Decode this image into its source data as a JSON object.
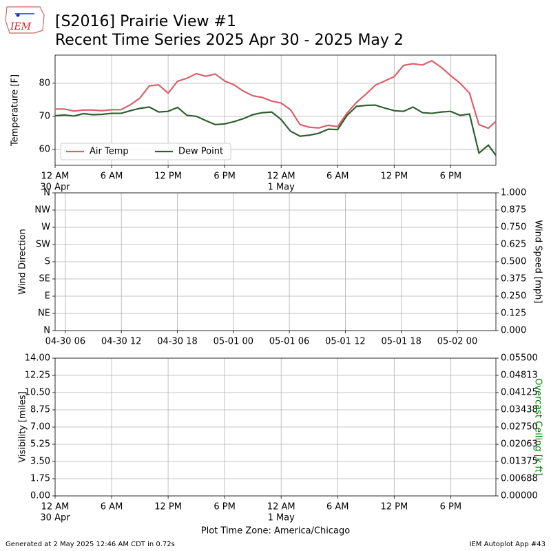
{
  "figure": {
    "logo": "IEM",
    "title": "[S2016] Prairie View #1",
    "subtitle": "Recent Time Series 2025 Apr 30 - 2025 May 2",
    "footer_left": "Generated at 2 May 2025 12:46 AM CDT in 0.72s",
    "footer_right": "IEM Autoplot App #43"
  },
  "chart_data": [
    {
      "type": "line",
      "ylabel": "Temperature [F]",
      "legend": "lower left",
      "grid": true,
      "xlim": [
        "2025-04-30 00:00",
        "2025-05-01 22:48"
      ],
      "xticks": [
        {
          "value": "2025-04-30 00:00",
          "label": "12 AM",
          "date": "30 Apr"
        },
        {
          "value": "2025-04-30 06:00",
          "label": "6 AM"
        },
        {
          "value": "2025-04-30 12:00",
          "label": "12 PM"
        },
        {
          "value": "2025-04-30 18:00",
          "label": "6 PM"
        },
        {
          "value": "2025-05-01 00:00",
          "label": "12 AM",
          "date": "1 May"
        },
        {
          "value": "2025-05-01 06:00",
          "label": "6 AM"
        },
        {
          "value": "2025-05-01 12:00",
          "label": "12 PM"
        },
        {
          "value": "2025-05-01 18:00",
          "label": "6 PM"
        }
      ],
      "ylim": [
        55.2,
        88.5
      ],
      "yticks": [
        60,
        70,
        80
      ],
      "x": [
        "2025-04-30 00:00",
        "2025-04-30 01:00",
        "2025-04-30 02:00",
        "2025-04-30 03:00",
        "2025-04-30 04:00",
        "2025-04-30 05:00",
        "2025-04-30 06:00",
        "2025-04-30 07:00",
        "2025-04-30 08:00",
        "2025-04-30 09:00",
        "2025-04-30 10:00",
        "2025-04-30 11:00",
        "2025-04-30 12:00",
        "2025-04-30 13:00",
        "2025-04-30 14:00",
        "2025-04-30 15:00",
        "2025-04-30 16:00",
        "2025-04-30 17:00",
        "2025-04-30 18:00",
        "2025-04-30 19:00",
        "2025-04-30 20:00",
        "2025-04-30 21:00",
        "2025-04-30 22:00",
        "2025-04-30 23:00",
        "2025-05-01 00:00",
        "2025-05-01 01:00",
        "2025-05-01 02:00",
        "2025-05-01 03:00",
        "2025-05-01 04:00",
        "2025-05-01 05:00",
        "2025-05-01 06:00",
        "2025-05-01 07:00",
        "2025-05-01 08:00",
        "2025-05-01 09:00",
        "2025-05-01 10:00",
        "2025-05-01 11:00",
        "2025-05-01 12:00",
        "2025-05-01 13:00",
        "2025-05-01 14:00",
        "2025-05-01 15:00",
        "2025-05-01 16:00",
        "2025-05-01 17:00",
        "2025-05-01 18:00",
        "2025-05-01 19:00",
        "2025-05-01 20:00",
        "2025-05-01 21:00",
        "2025-05-01 22:00",
        "2025-05-01 22:48"
      ],
      "series": [
        {
          "name": "Air Temp",
          "color": "#d9606a",
          "values": [
            72.2,
            72.2,
            71.6,
            71.9,
            71.9,
            71.7,
            72.0,
            72.0,
            73.5,
            75.5,
            79.2,
            79.5,
            77.0,
            80.6,
            81.5,
            82.9,
            82.1,
            82.8,
            80.7,
            79.5,
            77.6,
            76.2,
            75.7,
            74.6,
            74.0,
            72.0,
            67.5,
            66.7,
            66.5,
            67.3,
            66.9,
            71.0,
            74.2,
            76.7,
            79.4,
            80.7,
            82.0,
            85.4,
            85.9,
            85.5,
            86.8,
            84.8,
            82.3,
            80.0,
            77.0,
            67.5,
            66.4,
            68.5
          ]
        },
        {
          "name": "Dew Point",
          "color": "#2e5e2e",
          "values": [
            70.2,
            70.4,
            70.1,
            70.8,
            70.5,
            70.6,
            70.9,
            70.9,
            71.7,
            72.4,
            72.8,
            71.3,
            71.5,
            72.7,
            70.3,
            70.0,
            68.7,
            67.5,
            67.7,
            68.4,
            69.3,
            70.5,
            71.1,
            71.3,
            69.0,
            65.5,
            64.0,
            64.3,
            64.9,
            66.1,
            66.0,
            70.3,
            73.0,
            73.3,
            73.4,
            72.5,
            71.7,
            71.5,
            72.8,
            71.1,
            70.9,
            71.3,
            71.5,
            70.3,
            70.7,
            58.9,
            61.3,
            58.2
          ]
        }
      ]
    },
    {
      "type": "line",
      "ylabel": "Wind Direction",
      "y2label": "Wind Speed [mph]",
      "grid": true,
      "xlim": [
        "2025-04-30 04:54",
        "2025-05-02 04:08"
      ],
      "xticks": [
        {
          "value": "2025-04-30 06:00",
          "label": "04-30 06"
        },
        {
          "value": "2025-04-30 12:00",
          "label": "04-30 12"
        },
        {
          "value": "2025-04-30 18:00",
          "label": "04-30 18"
        },
        {
          "value": "2025-05-01 00:00",
          "label": "05-01 00"
        },
        {
          "value": "2025-05-01 06:00",
          "label": "05-01 06"
        },
        {
          "value": "2025-05-01 12:00",
          "label": "05-01 12"
        },
        {
          "value": "2025-05-01 18:00",
          "label": "05-01 18"
        },
        {
          "value": "2025-05-02 00:00",
          "label": "05-02 00"
        }
      ],
      "ylim": [
        0,
        360
      ],
      "yticks": [
        {
          "value": 0,
          "label": "N"
        },
        {
          "value": 45,
          "label": "NE"
        },
        {
          "value": 90,
          "label": "E"
        },
        {
          "value": 135,
          "label": "SE"
        },
        {
          "value": 180,
          "label": "S"
        },
        {
          "value": 225,
          "label": "SW"
        },
        {
          "value": 270,
          "label": "W"
        },
        {
          "value": 315,
          "label": "NW"
        },
        {
          "value": 360,
          "label": "N"
        }
      ],
      "y2lim": [
        0,
        1
      ],
      "y2ticks": [
        {
          "value": 0,
          "label": "0.000"
        },
        {
          "value": 0.125,
          "label": "0.125"
        },
        {
          "value": 0.25,
          "label": "0.250"
        },
        {
          "value": 0.375,
          "label": "0.375"
        },
        {
          "value": 0.5,
          "label": "0.500"
        },
        {
          "value": 0.625,
          "label": "0.625"
        },
        {
          "value": 0.75,
          "label": "0.750"
        },
        {
          "value": 0.875,
          "label": "0.875"
        },
        {
          "value": 1,
          "label": "1.000"
        }
      ],
      "series": []
    },
    {
      "type": "line",
      "ylabel": "Visibility [miles]",
      "y2label": "Overcast Ceiling [k ft]",
      "y2label_color": "#008000",
      "xlabel": "Plot Time Zone: America/Chicago",
      "grid": true,
      "xlim": [
        "2025-04-30 00:00",
        "2025-05-01 22:48"
      ],
      "xticks": [
        {
          "value": "2025-04-30 00:00",
          "label": "12 AM",
          "date": "30 Apr"
        },
        {
          "value": "2025-04-30 06:00",
          "label": "6 AM"
        },
        {
          "value": "2025-04-30 12:00",
          "label": "12 PM"
        },
        {
          "value": "2025-04-30 18:00",
          "label": "6 PM"
        },
        {
          "value": "2025-05-01 00:00",
          "label": "12 AM",
          "date": "1 May"
        },
        {
          "value": "2025-05-01 06:00",
          "label": "6 AM"
        },
        {
          "value": "2025-05-01 12:00",
          "label": "12 PM"
        },
        {
          "value": "2025-05-01 18:00",
          "label": "6 PM"
        }
      ],
      "ylim": [
        0,
        14
      ],
      "yticks": [
        {
          "value": 0,
          "label": "0.00"
        },
        {
          "value": 1.75,
          "label": "1.75"
        },
        {
          "value": 3.5,
          "label": "3.50"
        },
        {
          "value": 5.25,
          "label": "5.25"
        },
        {
          "value": 7,
          "label": "7.00"
        },
        {
          "value": 8.75,
          "label": "8.75"
        },
        {
          "value": 10.5,
          "label": "10.50"
        },
        {
          "value": 12.25,
          "label": "12.25"
        },
        {
          "value": 14,
          "label": "14.00"
        }
      ],
      "y2lim": [
        0,
        0.055
      ],
      "y2ticks": [
        {
          "value": 0,
          "label": "0.00000"
        },
        {
          "value": 0.006875,
          "label": "0.00688"
        },
        {
          "value": 0.01375,
          "label": "0.01375"
        },
        {
          "value": 0.020625,
          "label": "0.02063"
        },
        {
          "value": 0.0275,
          "label": "0.02750"
        },
        {
          "value": 0.034375,
          "label": "0.03438"
        },
        {
          "value": 0.04125,
          "label": "0.04125"
        },
        {
          "value": 0.048125,
          "label": "0.04813"
        },
        {
          "value": 0.055,
          "label": "0.05500"
        }
      ],
      "series": []
    }
  ]
}
